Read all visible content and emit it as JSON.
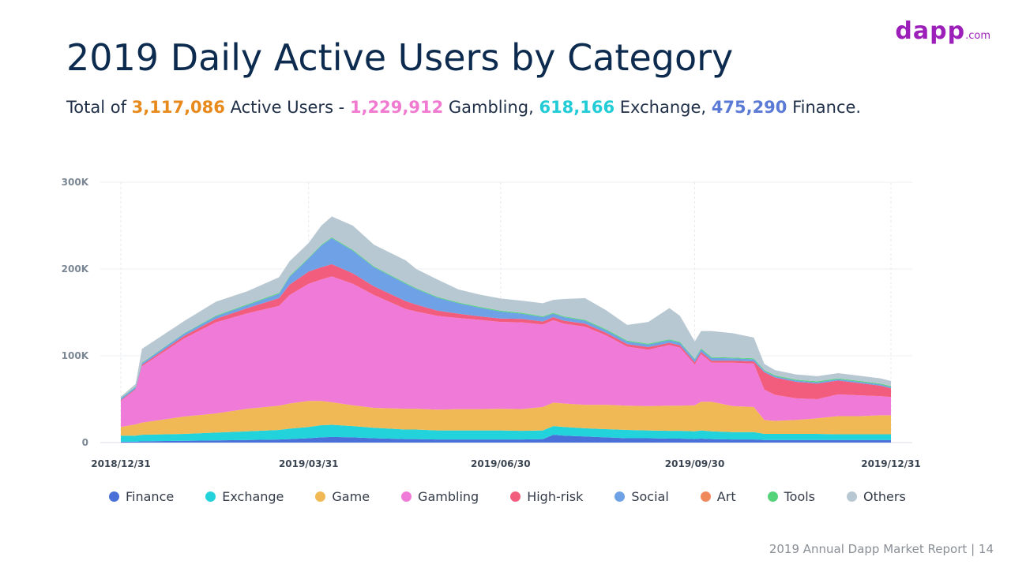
{
  "brand": {
    "logo_text": "dapp",
    "logo_suffix": ".com",
    "color": "#9b1fb8"
  },
  "title": "2019 Daily Active Users by Category",
  "subtitle": {
    "prefix": "Total of ",
    "total": "3,117,086",
    "mid1": " Active Users - ",
    "gambling": "1,229,912",
    "mid2": " Gambling, ",
    "exchange": "618,166",
    "mid3": " Exchange, ",
    "finance": "475,290",
    "suffix": " Finance.",
    "colors": {
      "total": "#e8891c",
      "gambling": "#f07ad0",
      "exchange": "#22ccd6",
      "finance": "#5b7ad6"
    }
  },
  "footer": {
    "report": "2019 Annual Dapp Market Report",
    "separator": "|",
    "page": "14"
  },
  "chart_data": {
    "type": "area",
    "stacked": true,
    "title": "",
    "xlabel": "",
    "ylabel": "",
    "ylim": [
      0,
      300000
    ],
    "yticks": [
      0,
      100000,
      200000,
      300000
    ],
    "ytick_labels": [
      "0",
      "100K",
      "200K",
      "300K"
    ],
    "xticks": [
      0,
      89,
      180,
      272,
      365
    ],
    "xtick_labels": [
      "2018/12/31",
      "2019/03/31",
      "2019/06/30",
      "2019/09/30",
      "2019/12/31"
    ],
    "legend_position": "bottom",
    "x": [
      0,
      7,
      10,
      30,
      45,
      60,
      75,
      80,
      89,
      95,
      100,
      110,
      120,
      135,
      140,
      150,
      160,
      170,
      180,
      190,
      200,
      205,
      210,
      220,
      230,
      240,
      250,
      260,
      265,
      272,
      275,
      280,
      290,
      300,
      305,
      310,
      320,
      330,
      340,
      350,
      360,
      365
    ],
    "series": [
      {
        "name": "Finance",
        "color": "#4a6fd8",
        "values": [
          1000,
          1000,
          1500,
          2000,
          2500,
          3000,
          3500,
          4000,
          5000,
          6000,
          6500,
          6000,
          5000,
          4000,
          4000,
          3500,
          3500,
          3500,
          3500,
          3500,
          4000,
          9000,
          8000,
          7000,
          6000,
          5000,
          5000,
          4500,
          4500,
          4000,
          4500,
          4000,
          3500,
          3500,
          3000,
          3000,
          3000,
          3000,
          3000,
          3000,
          3000,
          3000
        ]
      },
      {
        "name": "Exchange",
        "color": "#22d3dc",
        "values": [
          7000,
          7000,
          7500,
          8000,
          9000,
          10000,
          11000,
          12000,
          13000,
          14000,
          14000,
          13000,
          12000,
          11000,
          11000,
          10500,
          10500,
          10500,
          10500,
          10000,
          10000,
          10000,
          10000,
          9500,
          9500,
          9500,
          9000,
          9000,
          9000,
          9000,
          9500,
          9000,
          8500,
          8500,
          7000,
          7000,
          7000,
          7000,
          6500,
          6500,
          6500,
          6500
        ]
      },
      {
        "name": "Game",
        "color": "#f0b955",
        "values": [
          10000,
          13000,
          14000,
          20000,
          22000,
          26000,
          28000,
          29000,
          30000,
          28000,
          26000,
          24000,
          23000,
          24000,
          24000,
          24000,
          24500,
          24500,
          25000,
          25000,
          27000,
          27000,
          27000,
          27000,
          28000,
          28000,
          28000,
          29000,
          29000,
          30000,
          33000,
          34000,
          30000,
          29000,
          16000,
          15000,
          16000,
          18000,
          21000,
          21000,
          22000,
          22000
        ]
      },
      {
        "name": "Gambling",
        "color": "#f07ad8",
        "values": [
          30000,
          40000,
          65000,
          90000,
          105000,
          110000,
          115000,
          125000,
          135000,
          140000,
          145000,
          140000,
          130000,
          115000,
          112000,
          108000,
          105000,
          103000,
          100000,
          100000,
          95000,
          95000,
          92000,
          90000,
          80000,
          68000,
          65000,
          70000,
          67000,
          47000,
          55000,
          45000,
          50000,
          50000,
          35000,
          30000,
          25000,
          22000,
          25000,
          24000,
          22000,
          21000
        ]
      },
      {
        "name": "High-risk",
        "color": "#f25c7d",
        "values": [
          1000,
          1000,
          1500,
          3000,
          4000,
          6000,
          9000,
          12000,
          14000,
          14000,
          14000,
          12000,
          10000,
          9000,
          8000,
          6000,
          5000,
          4000,
          4000,
          4000,
          3500,
          3500,
          3500,
          3500,
          3000,
          3000,
          3000,
          2500,
          2500,
          2500,
          2500,
          2500,
          2500,
          2500,
          20000,
          20000,
          19000,
          18000,
          16000,
          14000,
          12000,
          10000
        ]
      },
      {
        "name": "Social",
        "color": "#6fa1e6",
        "values": [
          2000,
          2000,
          2000,
          2500,
          3000,
          3500,
          5000,
          9000,
          15000,
          25000,
          30000,
          26000,
          22000,
          20000,
          18000,
          15000,
          12000,
          10000,
          8000,
          6000,
          5000,
          4000,
          4000,
          3500,
          3000,
          3000,
          3000,
          3000,
          3000,
          3000,
          3000,
          3000,
          2500,
          2500,
          1500,
          1500,
          1500,
          1500,
          1500,
          1500,
          1500,
          1500
        ]
      },
      {
        "name": "Art",
        "color": "#f08a5d",
        "values": [
          0,
          0,
          0,
          0,
          0,
          0,
          0,
          0,
          0,
          0,
          0,
          0,
          0,
          0,
          0,
          0,
          0,
          0,
          0,
          0,
          0,
          0,
          0,
          0,
          0,
          0,
          0,
          0,
          0,
          0,
          0,
          0,
          0,
          0,
          0,
          0,
          0,
          0,
          0,
          0,
          0,
          0
        ]
      },
      {
        "name": "Tools",
        "color": "#55d37a",
        "values": [
          500,
          500,
          500,
          500,
          800,
          1000,
          1000,
          1000,
          1000,
          1000,
          1000,
          1000,
          1000,
          1000,
          1000,
          1000,
          1000,
          1000,
          1000,
          1000,
          1000,
          1000,
          1000,
          1000,
          1000,
          1000,
          1000,
          1000,
          1000,
          1000,
          1000,
          1000,
          1000,
          1000,
          1000,
          1000,
          1000,
          1000,
          1000,
          1000,
          1000,
          1000
        ]
      },
      {
        "name": "Others",
        "color": "#b8c8d2",
        "values": [
          1500,
          3000,
          16000,
          14000,
          16000,
          15000,
          18000,
          17000,
          17000,
          22000,
          24000,
          28000,
          25000,
          26000,
          22000,
          20000,
          15000,
          14000,
          14000,
          14000,
          15000,
          15000,
          20000,
          25000,
          22000,
          18000,
          25000,
          36000,
          30000,
          20000,
          20000,
          30000,
          28000,
          24000,
          7000,
          6000,
          6000,
          6000,
          6000,
          6000,
          6000,
          6000
        ]
      }
    ]
  }
}
